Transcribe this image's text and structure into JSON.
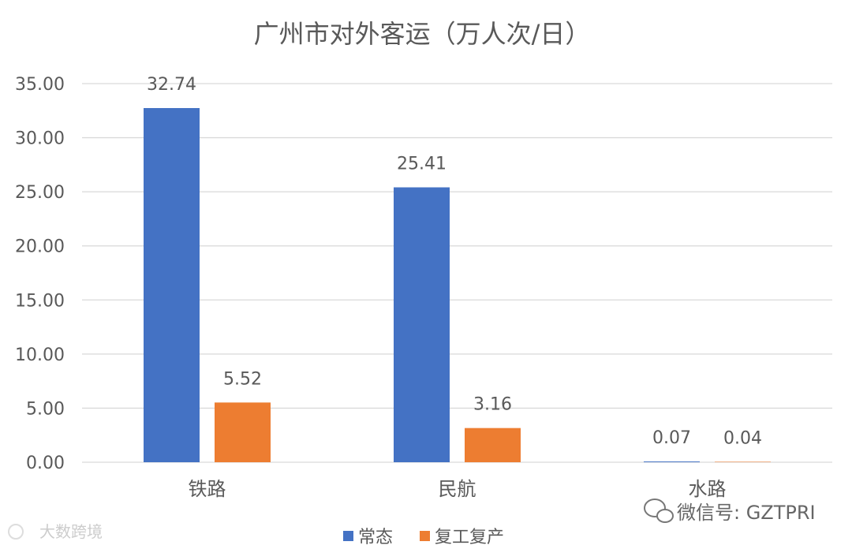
{
  "chart_data": {
    "type": "bar",
    "title": "广州市对外客运（万人次/日）",
    "categories": [
      "铁路",
      "民航",
      "水路"
    ],
    "series": [
      {
        "name": "常态",
        "values": [
          32.74,
          25.41,
          0.07
        ],
        "labels": [
          "32.74",
          "25.41",
          "0.07"
        ],
        "color": "#4472C4"
      },
      {
        "name": "复工复产",
        "values": [
          5.52,
          3.16,
          0.04
        ],
        "labels": [
          "5.52",
          "3.16",
          "0.04"
        ],
        "color": "#ED7D31"
      }
    ],
    "ylim": [
      0,
      35
    ],
    "yticks": [
      "0.00",
      "5.00",
      "10.00",
      "15.00",
      "20.00",
      "25.00",
      "30.00",
      "35.00"
    ],
    "grid": true,
    "legend_position": "bottom"
  },
  "watermarks": {
    "wechat": "微信号: GZTPRI",
    "corner": "大数跨境"
  },
  "colors": {
    "grid": "#d9d9d9",
    "text": "#595959"
  }
}
